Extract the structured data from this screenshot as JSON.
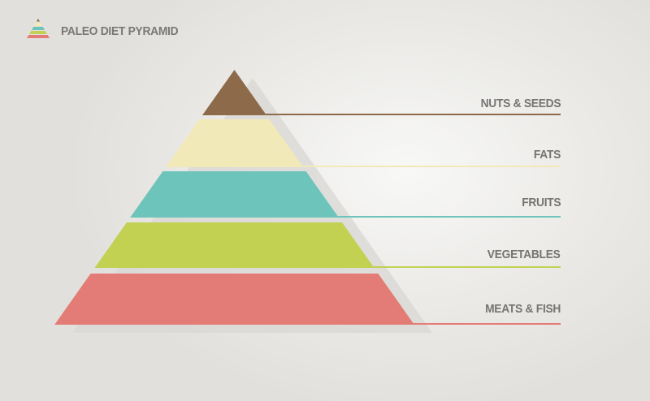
{
  "header": {
    "title": "PALEO DIET PYRAMID",
    "logo_icon": "mini-pyramid-icon"
  },
  "pyramid": {
    "levels": [
      {
        "label": "NUTS & SEEDS",
        "color": "#8c6a4a"
      },
      {
        "label": "FATS",
        "color": "#f2e9b8"
      },
      {
        "label": "FRUITS",
        "color": "#6cc4bb"
      },
      {
        "label": "VEGETABLES",
        "color": "#c2d152"
      },
      {
        "label": "MEATS & FISH",
        "color": "#e37c76"
      }
    ],
    "shadow_color": "#d9d8d4"
  }
}
